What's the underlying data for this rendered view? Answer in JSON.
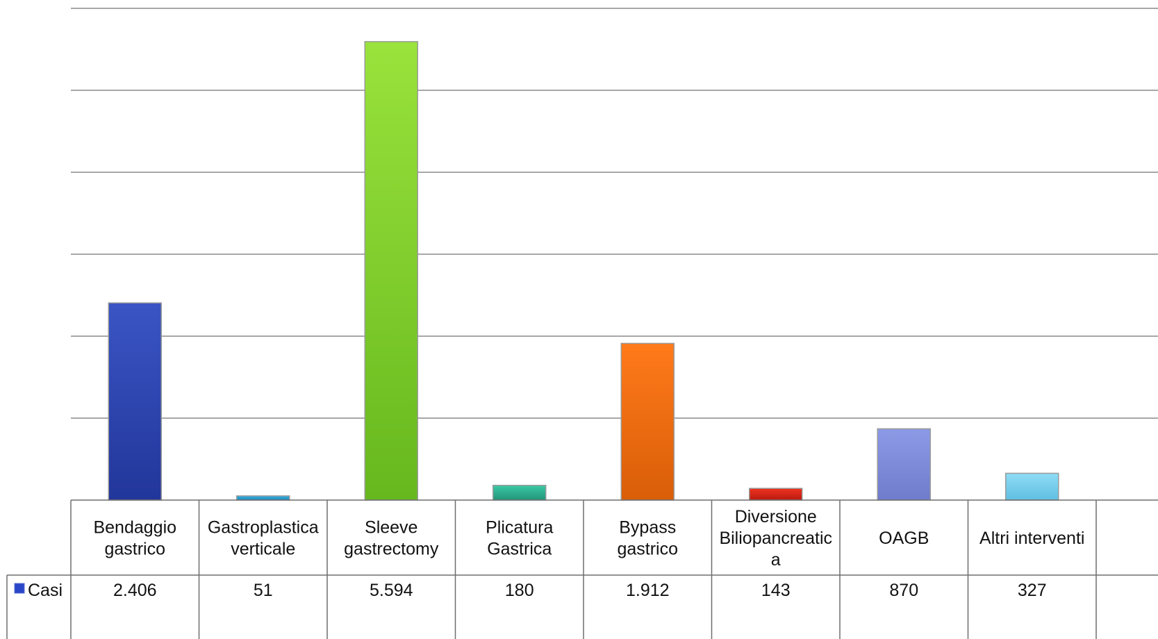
{
  "chart_data": {
    "type": "bar",
    "title": "",
    "xlabel": "",
    "ylabel": "",
    "ylim": [
      0,
      6000
    ],
    "gridlines": [
      0,
      1000,
      2000,
      3000,
      4000,
      5000,
      6000
    ],
    "grid": true,
    "legend": "data-table-left",
    "categories": [
      [
        "Bendaggio",
        "gastrico"
      ],
      [
        "Gastroplastica",
        "verticale"
      ],
      [
        "Sleeve",
        "gastrectomy"
      ],
      [
        "Plicatura",
        "Gastrica"
      ],
      [
        "Bypass",
        "gastrico"
      ],
      [
        "Diversione",
        "Biliopancreatic",
        "a"
      ],
      [
        "OAGB"
      ],
      [
        "Altri interventi"
      ]
    ],
    "series": [
      {
        "name": "Casi",
        "values": [
          2406,
          51,
          5594,
          180,
          1912,
          143,
          870,
          327
        ],
        "labels": [
          "2.406",
          "51",
          "5.594",
          "180",
          "1.912",
          "143",
          "870",
          "327"
        ]
      }
    ],
    "bar_colors": [
      [
        "#3a55c4",
        "#22369a"
      ],
      [
        "#2fb4e6",
        "#1f86b8"
      ],
      [
        "#9ae23c",
        "#66b81e"
      ],
      [
        "#3cc9a6",
        "#229478"
      ],
      [
        "#ff7a1a",
        "#d95e08"
      ],
      [
        "#ef3321",
        "#b91a0f"
      ],
      [
        "#8c9ae6",
        "#6f7ccc"
      ],
      [
        "#8fdcf5",
        "#5fbfe2"
      ]
    ],
    "legend_swatch_color": "#2a46c8",
    "grid_color": "#8a8a8a"
  }
}
